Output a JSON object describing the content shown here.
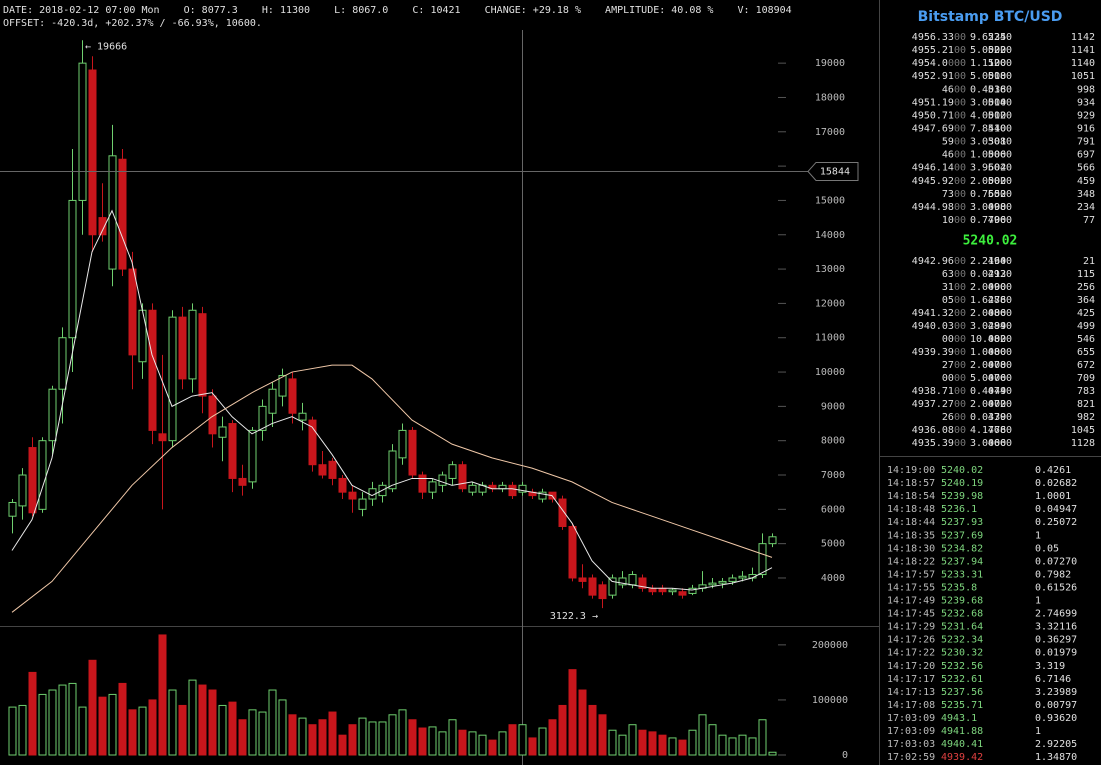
{
  "header": {
    "line1": "DATE: 2018-02-12 07:00 Mon    O: 8077.3    H: 11300    L: 8067.0    C: 10421    CHANGE: +29.18 %    AMPLITUDE: 40.08 %    V: 108904",
    "line2": "OFFSET: -420.3d, +202.37% / -66.93%, 10600."
  },
  "chart": {
    "type": "candlestick",
    "up_color": "#6fd06f",
    "down_color": "#c8161c",
    "ylim": [
      2630,
      19820
    ],
    "yticks": [
      4000,
      5000,
      6000,
      7000,
      8000,
      9000,
      10000,
      11000,
      12000,
      13000,
      14000,
      15000,
      16000,
      17000,
      18000,
      19000
    ],
    "vol_ylim": [
      0,
      227000
    ],
    "vol_yticks": [
      0,
      100000,
      200000
    ],
    "candles": {
      "open": [
        5800,
        6100,
        7800,
        6000,
        8000,
        9500,
        11000,
        15000,
        18800,
        14500,
        13000,
        16200,
        13000,
        10300,
        11800,
        8200,
        8000,
        11600,
        9800,
        11700,
        9300,
        8100,
        8500,
        6900,
        6800,
        8300,
        8800,
        9300,
        9800,
        8600,
        8600,
        7300,
        7400,
        6900,
        6500,
        6000,
        6300,
        6400,
        6600,
        7500,
        8300,
        7000,
        6500,
        6700,
        6900,
        7300,
        6500,
        6500,
        6700,
        6600,
        6700,
        6500,
        6500,
        6300,
        6500,
        6300,
        5500,
        4000,
        4000,
        3800,
        3500,
        3800,
        3800,
        4000,
        3700,
        3700,
        3600,
        3600,
        3550,
        3700,
        3800,
        3850,
        3900,
        4000,
        4000,
        4100,
        5000
      ],
      "high": [
        6300,
        7200,
        8100,
        8100,
        9600,
        11300,
        16500,
        19666,
        19200,
        15500,
        17200,
        16500,
        13500,
        12000,
        12000,
        10500,
        11800,
        11900,
        12000,
        11900,
        9500,
        8700,
        8600,
        7300,
        8400,
        9200,
        9700,
        10100,
        10000,
        9100,
        8700,
        7700,
        7500,
        7000,
        6700,
        6500,
        6800,
        6800,
        7900,
        8500,
        8400,
        7100,
        6900,
        7100,
        7400,
        7400,
        6800,
        6800,
        6800,
        6800,
        6800,
        6800,
        6600,
        6600,
        6500,
        6400,
        5600,
        4400,
        4100,
        3900,
        4100,
        4200,
        4200,
        4100,
        3800,
        3800,
        3700,
        3700,
        3800,
        4200,
        4000,
        4000,
        4100,
        4200,
        4300,
        5300,
        5300
      ],
      "low": [
        5300,
        5700,
        5800,
        5900,
        7600,
        8500,
        10000,
        14000,
        13500,
        13800,
        12500,
        12800,
        9500,
        9800,
        7900,
        6000,
        7800,
        9500,
        9400,
        8800,
        7800,
        7400,
        6500,
        6400,
        6600,
        8000,
        8400,
        9000,
        8500,
        8300,
        7100,
        6900,
        6700,
        6300,
        5900,
        5800,
        6100,
        6200,
        6500,
        7300,
        6900,
        6300,
        6300,
        6500,
        6700,
        6500,
        6400,
        6400,
        6500,
        6500,
        6300,
        6400,
        6300,
        6200,
        6200,
        5400,
        3900,
        3700,
        3400,
        3122.3,
        3400,
        3700,
        3700,
        3600,
        3500,
        3500,
        3500,
        3400,
        3500,
        3600,
        3700,
        3700,
        3800,
        3900,
        3900,
        4000,
        4900
      ],
      "close": [
        6200,
        7000,
        5900,
        8000,
        9500,
        11000,
        15000,
        19000,
        14000,
        14000,
        16300,
        13000,
        10500,
        11800,
        8300,
        8000,
        11600,
        9800,
        11800,
        9300,
        8200,
        8400,
        6900,
        6700,
        8300,
        9000,
        9500,
        9900,
        8800,
        8800,
        7300,
        7000,
        6900,
        6500,
        6300,
        6300,
        6600,
        6700,
        7700,
        8300,
        7000,
        6500,
        6800,
        7000,
        7300,
        6600,
        6700,
        6700,
        6600,
        6700,
        6400,
        6700,
        6400,
        6500,
        6300,
        5500,
        4000,
        3900,
        3500,
        3400,
        4000,
        4000,
        4100,
        3700,
        3600,
        3600,
        3650,
        3500,
        3700,
        3800,
        3850,
        3900,
        4000,
        4050,
        4100,
        5000,
        5200
      ]
    },
    "volume": [
      87000,
      90000,
      150000,
      110000,
      118000,
      127000,
      130000,
      87000,
      172000,
      105000,
      110000,
      130000,
      82000,
      87000,
      100000,
      218000,
      118000,
      90000,
      136000,
      127000,
      118000,
      90000,
      96000,
      64000,
      82000,
      78000,
      118000,
      100000,
      73000,
      67000,
      55000,
      64000,
      78000,
      36000,
      55000,
      67000,
      60000,
      60000,
      73000,
      82000,
      64000,
      49000,
      51000,
      42000,
      64000,
      45000,
      42000,
      36000,
      27000,
      42000,
      55000,
      55000,
      31000,
      49000,
      64000,
      90000,
      155000,
      118000,
      90000,
      73000,
      45000,
      36000,
      55000,
      45000,
      42000,
      36000,
      31000,
      27000,
      45000,
      73000,
      55000,
      36000,
      31000,
      36000,
      31000,
      64000,
      5000
    ],
    "ma": [
      {
        "color": "#e8e8e8",
        "x": [
          0,
          2,
          4,
          6,
          8,
          10,
          12,
          14,
          16,
          18,
          20,
          22,
          24,
          26,
          28,
          30,
          32,
          34,
          36,
          38,
          40,
          42,
          44,
          46,
          48,
          50,
          52,
          54,
          56,
          58,
          60,
          62,
          64,
          66,
          68,
          70,
          72,
          74,
          76
        ],
        "values": [
          4800,
          5700,
          7500,
          10500,
          13500,
          14700,
          13200,
          10500,
          9000,
          9300,
          9400,
          8700,
          8200,
          8500,
          8700,
          8400,
          7600,
          6700,
          6400,
          6700,
          6900,
          6900,
          6700,
          6800,
          6600,
          6600,
          6500,
          6400,
          5600,
          4500,
          3900,
          3800,
          3700,
          3700,
          3650,
          3750,
          3850,
          4000,
          4300
        ]
      },
      {
        "color": "#f0c8a8",
        "x": [
          0,
          4,
          8,
          12,
          16,
          20,
          24,
          28,
          32,
          34,
          36,
          40,
          44,
          48,
          52,
          56,
          60,
          64,
          68,
          72,
          76
        ],
        "values": [
          3000,
          3900,
          5300,
          6700,
          7800,
          8700,
          9400,
          10000,
          10200,
          10200,
          9800,
          8600,
          7900,
          7500,
          7200,
          6800,
          6200,
          5800,
          5400,
          5000,
          4600
        ]
      }
    ],
    "high_label": "← 19666",
    "low_label": "3122.3 →",
    "crosshair_price": 15844,
    "crosshair_label": "15844"
  },
  "order_book": {
    "title": "Bitstamp BTC/USD",
    "asks": [
      [
        "4956.33",
        "00",
        "9.6235",
        "5240",
        "1142"
      ],
      [
        "4955.21",
        "00",
        "5.0000",
        "5220",
        "1141"
      ],
      [
        "4954.0",
        "000",
        "1.1100",
        "5200",
        "1140"
      ],
      [
        "4952.91",
        "00",
        "5.0000",
        "5180",
        "1051"
      ],
      [
        "46",
        "00",
        "0.4038",
        "5160",
        "998"
      ],
      [
        "4951.19",
        "00",
        "3.0000",
        "5140",
        "934"
      ],
      [
        "4950.71",
        "00",
        "4.0000",
        "5120",
        "929"
      ],
      [
        "4947.69",
        "00",
        "7.8440",
        "5100",
        "916"
      ],
      [
        "59",
        "00",
        "3.0301",
        "5080",
        "791"
      ],
      [
        "46",
        "00",
        "1.0000",
        "5060",
        "697"
      ],
      [
        "4946.14",
        "00",
        "3.9602",
        "5040",
        "566"
      ],
      [
        "4945.92",
        "00",
        "2.0000",
        "5020",
        "459"
      ],
      [
        "73",
        "00",
        "0.7652",
        "5000",
        "348"
      ],
      [
        "4944.98",
        "00",
        "3.0000",
        "4980",
        "234"
      ],
      [
        "10",
        "00",
        "0.7700",
        "4960",
        "77"
      ]
    ],
    "mid": "5240.02",
    "bids": [
      [
        "4942.96",
        "00",
        "2.2160",
        "4940",
        "21"
      ],
      [
        "63",
        "00",
        "0.0213",
        "4920",
        "115"
      ],
      [
        "31",
        "00",
        "2.0000",
        "4900",
        "256"
      ],
      [
        "05",
        "00",
        "1.6276",
        "4880",
        "364"
      ],
      [
        "4941.32",
        "00",
        "2.0000",
        "4860",
        "425"
      ],
      [
        "4940.03",
        "00",
        "3.0299",
        "4840",
        "499"
      ],
      [
        "00",
        "00",
        "10.000",
        "4820",
        "546"
      ],
      [
        "4939.39",
        "00",
        "1.0000",
        "4800",
        "655"
      ],
      [
        "27",
        "00",
        "2.0000",
        "4780",
        "672"
      ],
      [
        "00",
        "00",
        "5.0000",
        "4760",
        "709"
      ],
      [
        "4938.71",
        "00",
        "0.4049",
        "4740",
        "783"
      ],
      [
        "4937.27",
        "00",
        "2.0000",
        "4720",
        "821"
      ],
      [
        "26",
        "00",
        "0.0339",
        "4700",
        "982"
      ],
      [
        "4936.08",
        "00",
        "4.1776",
        "4680",
        "1045"
      ],
      [
        "4935.39",
        "00",
        "3.0000",
        "4660",
        "1128"
      ]
    ]
  },
  "trades": [
    [
      "14:19:00",
      "5240.02",
      "0.4261",
      "#7ed67e"
    ],
    [
      "14:18:57",
      "5240.19",
      "0.02682",
      "#7ed67e"
    ],
    [
      "14:18:54",
      "5239.98",
      "1.0001",
      "#7ed67e"
    ],
    [
      "14:18:48",
      "5236.1",
      "0.04947",
      "#7ed67e"
    ],
    [
      "14:18:44",
      "5237.93",
      "0.25072",
      "#7ed67e"
    ],
    [
      "14:18:35",
      "5237.69",
      "1",
      "#7ed67e"
    ],
    [
      "14:18:30",
      "5234.82",
      "0.05",
      "#7ed67e"
    ],
    [
      "14:18:22",
      "5237.94",
      "0.07270",
      "#7ed67e"
    ],
    [
      "14:17:57",
      "5233.31",
      "0.7982",
      "#7ed67e"
    ],
    [
      "14:17:55",
      "5235.8",
      "0.61526",
      "#7ed67e"
    ],
    [
      "14:17:49",
      "5239.68",
      "1",
      "#7ed67e"
    ],
    [
      "14:17:45",
      "5232.68",
      "2.74699",
      "#7ed67e"
    ],
    [
      "14:17:29",
      "5231.64",
      "3.32116",
      "#7ed67e"
    ],
    [
      "14:17:26",
      "5232.34",
      "0.36297",
      "#7ed67e"
    ],
    [
      "14:17:22",
      "5230.32",
      "0.01979",
      "#7ed67e"
    ],
    [
      "14:17:20",
      "5232.56",
      "3.319",
      "#7ed67e"
    ],
    [
      "14:17:17",
      "5232.61",
      "6.7146",
      "#7ed67e"
    ],
    [
      "14:17:13",
      "5237.56",
      "3.23989",
      "#7ed67e"
    ],
    [
      "14:17:08",
      "5235.71",
      "0.00797",
      "#7ed67e"
    ],
    [
      "17:03:09",
      "4943.1",
      "0.93620",
      "#7ed67e"
    ],
    [
      "17:03:09",
      "4941.88",
      "1",
      "#7ed67e"
    ],
    [
      "17:03:03",
      "4940.41",
      "2.92205",
      "#7ed67e"
    ],
    [
      "17:02:59",
      "4939.42",
      "1.34870",
      "#e04040"
    ]
  ]
}
